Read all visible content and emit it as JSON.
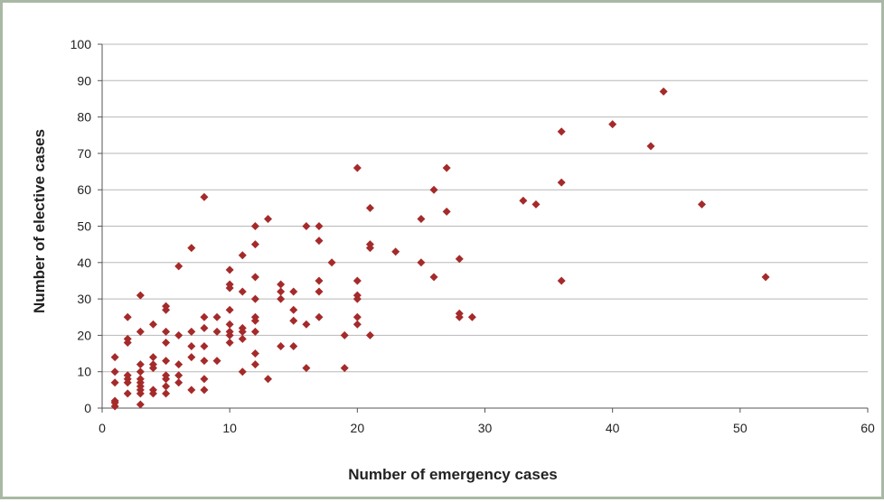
{
  "chart_data": {
    "type": "scatter",
    "title": "",
    "xlabel": "Number of emergency cases",
    "ylabel": "Number of elective cases",
    "xlim": [
      0,
      60
    ],
    "ylim": [
      0,
      100
    ],
    "x_ticks": [
      0,
      10,
      20,
      30,
      40,
      50,
      60
    ],
    "y_ticks": [
      0,
      10,
      20,
      30,
      40,
      50,
      60,
      70,
      80,
      90,
      100
    ],
    "grid": "horizontal",
    "legend": "none",
    "marker": "diamond",
    "marker_color": "#a52a2a",
    "gridline_color": "#b8b8b8",
    "points": [
      [
        1,
        0.5
      ],
      [
        1,
        1.5
      ],
      [
        1,
        2
      ],
      [
        1,
        7
      ],
      [
        1,
        10
      ],
      [
        1,
        14
      ],
      [
        2,
        4
      ],
      [
        2,
        7
      ],
      [
        2,
        8
      ],
      [
        2,
        9
      ],
      [
        2,
        18
      ],
      [
        2,
        19
      ],
      [
        2,
        25
      ],
      [
        3,
        1
      ],
      [
        3,
        4
      ],
      [
        3,
        5
      ],
      [
        3,
        6
      ],
      [
        3,
        7
      ],
      [
        3,
        8
      ],
      [
        3,
        10
      ],
      [
        3,
        12
      ],
      [
        3,
        21
      ],
      [
        3,
        31
      ],
      [
        4,
        4
      ],
      [
        4,
        5
      ],
      [
        4,
        11
      ],
      [
        4,
        12
      ],
      [
        4,
        14
      ],
      [
        4,
        23
      ],
      [
        5,
        4
      ],
      [
        5,
        6
      ],
      [
        5,
        8
      ],
      [
        5,
        9
      ],
      [
        5,
        13
      ],
      [
        5,
        18
      ],
      [
        5,
        21
      ],
      [
        5,
        27
      ],
      [
        5,
        28
      ],
      [
        6,
        7
      ],
      [
        6,
        9
      ],
      [
        6,
        12
      ],
      [
        6,
        20
      ],
      [
        6,
        39
      ],
      [
        7,
        5
      ],
      [
        7,
        14
      ],
      [
        7,
        17
      ],
      [
        7,
        21
      ],
      [
        7,
        44
      ],
      [
        8,
        5
      ],
      [
        8,
        8
      ],
      [
        8,
        13
      ],
      [
        8,
        17
      ],
      [
        8,
        22
      ],
      [
        8,
        25
      ],
      [
        8,
        58
      ],
      [
        9,
        13
      ],
      [
        9,
        21
      ],
      [
        9,
        25
      ],
      [
        10,
        18
      ],
      [
        10,
        20
      ],
      [
        10,
        21
      ],
      [
        10,
        23
      ],
      [
        10,
        27
      ],
      [
        10,
        33
      ],
      [
        10,
        34
      ],
      [
        10,
        38
      ],
      [
        11,
        10
      ],
      [
        11,
        19
      ],
      [
        11,
        21
      ],
      [
        11,
        22
      ],
      [
        11,
        32
      ],
      [
        11,
        42
      ],
      [
        12,
        12
      ],
      [
        12,
        15
      ],
      [
        12,
        21
      ],
      [
        12,
        24
      ],
      [
        12,
        25
      ],
      [
        12,
        30
      ],
      [
        12,
        36
      ],
      [
        12,
        45
      ],
      [
        12,
        50
      ],
      [
        13,
        8
      ],
      [
        13,
        52
      ],
      [
        14,
        17
      ],
      [
        14,
        30
      ],
      [
        14,
        32
      ],
      [
        14,
        34
      ],
      [
        15,
        17
      ],
      [
        15,
        24
      ],
      [
        15,
        27
      ],
      [
        15,
        32
      ],
      [
        16,
        11
      ],
      [
        16,
        23
      ],
      [
        16,
        50
      ],
      [
        17,
        25
      ],
      [
        17,
        32
      ],
      [
        17,
        35
      ],
      [
        17,
        46
      ],
      [
        17,
        50
      ],
      [
        18,
        40
      ],
      [
        19,
        11
      ],
      [
        19,
        20
      ],
      [
        20,
        23
      ],
      [
        20,
        25
      ],
      [
        20,
        30
      ],
      [
        20,
        31
      ],
      [
        20,
        35
      ],
      [
        20,
        66
      ],
      [
        21,
        20
      ],
      [
        21,
        44
      ],
      [
        21,
        45
      ],
      [
        21,
        55
      ],
      [
        23,
        43
      ],
      [
        25,
        40
      ],
      [
        25,
        52
      ],
      [
        26,
        36
      ],
      [
        26,
        60
      ],
      [
        27,
        54
      ],
      [
        27,
        66
      ],
      [
        28,
        25
      ],
      [
        28,
        26
      ],
      [
        28,
        41
      ],
      [
        29,
        25
      ],
      [
        33,
        57
      ],
      [
        34,
        56
      ],
      [
        36,
        35
      ],
      [
        36,
        62
      ],
      [
        36,
        76
      ],
      [
        40,
        78
      ],
      [
        43,
        72
      ],
      [
        44,
        87
      ],
      [
        47,
        56
      ],
      [
        52,
        36
      ]
    ]
  }
}
